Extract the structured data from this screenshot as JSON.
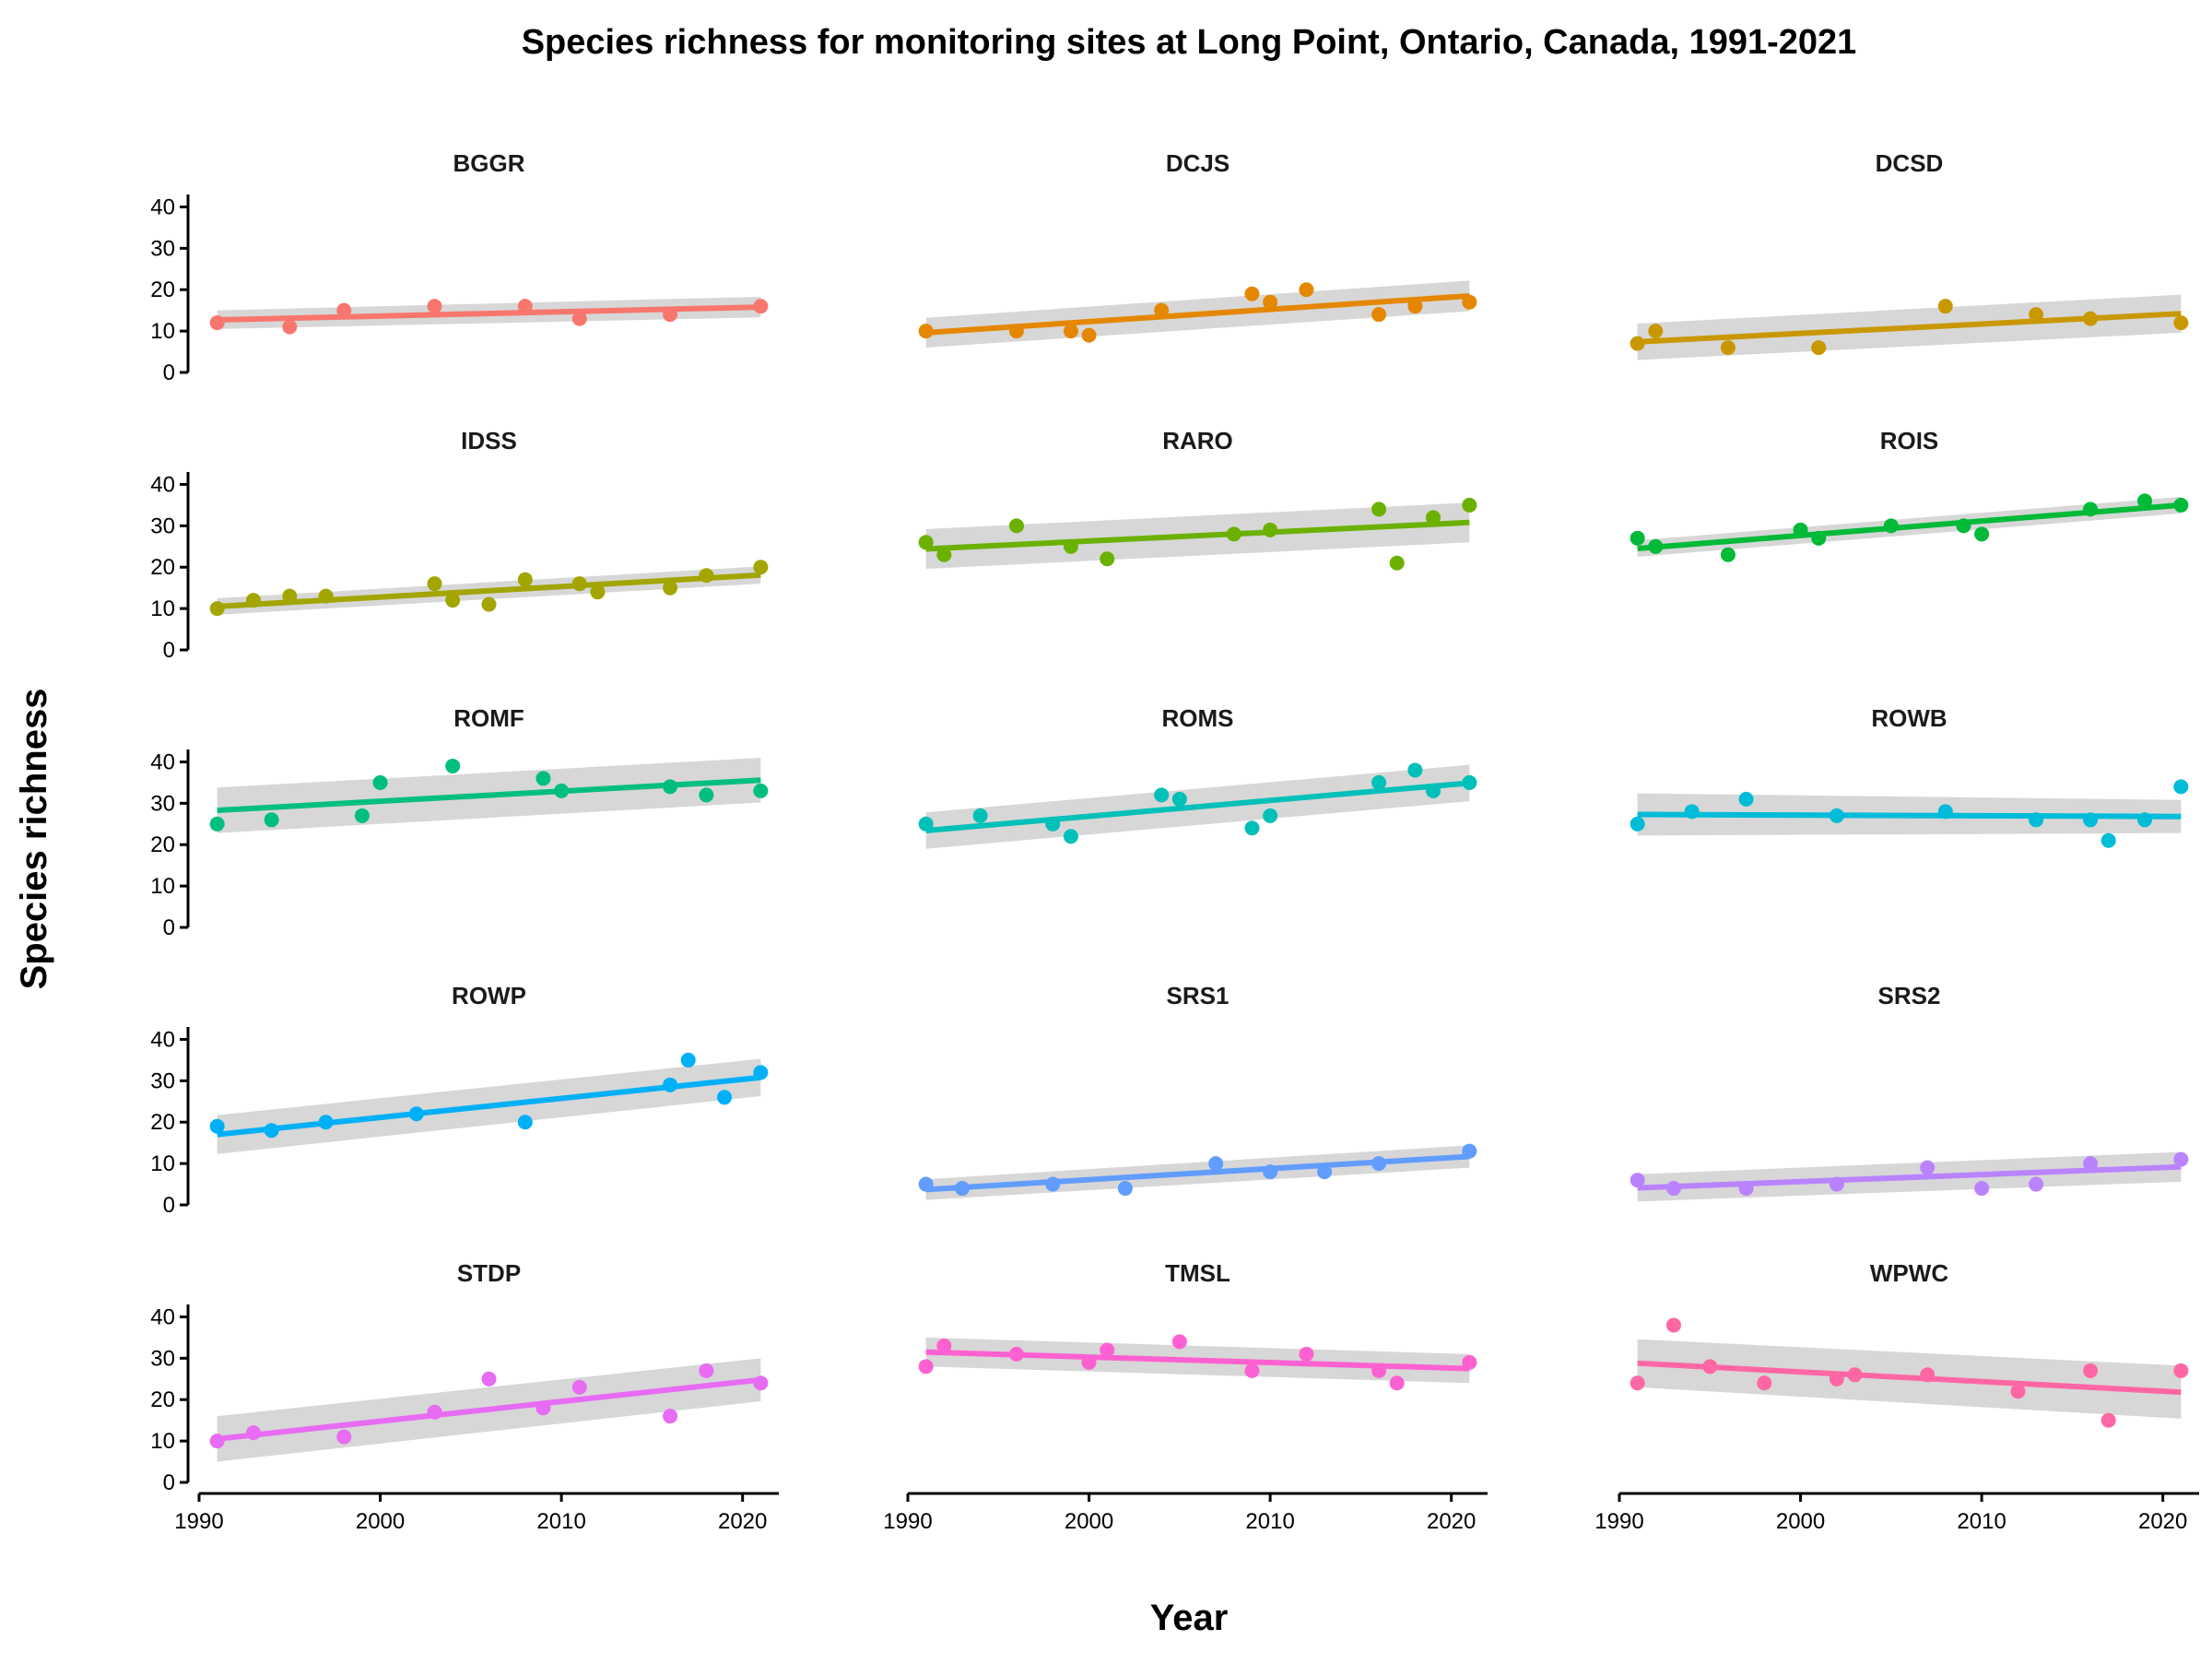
{
  "chart_data": {
    "type": "scatter",
    "title": "Species richness for monitoring sites at Long Point, Ontario, Canada, 1991-2021",
    "xlabel": "Year",
    "ylabel": "Species richness",
    "xlim": [
      1990,
      2022
    ],
    "ylim": [
      0,
      43
    ],
    "x_ticks": [
      "1990",
      "2000",
      "2010",
      "2020"
    ],
    "y_ticks": [
      "0",
      "10",
      "20",
      "30",
      "40"
    ],
    "grid": false,
    "trend": "linear fit with confidence band",
    "panels": [
      {
        "name": "BGGR",
        "color": "#F8766D",
        "x": [
          1991,
          1995,
          1998,
          2003,
          2008,
          2011,
          2016,
          2021
        ],
        "y": [
          12,
          11,
          15,
          16,
          16,
          13,
          14,
          16
        ],
        "fit": [
          12.7,
          15.8
        ],
        "band": [
          [
            10.5,
            15.0
          ],
          [
            13.3,
            18.3
          ]
        ]
      },
      {
        "name": "DCJS",
        "color": "#E58700",
        "x": [
          1991,
          1996,
          1999,
          2000,
          2004,
          2009,
          2010,
          2012,
          2016,
          2018,
          2021
        ],
        "y": [
          10,
          10,
          10,
          9,
          15,
          19,
          17,
          20,
          14,
          16,
          17
        ],
        "fit": [
          9.6,
          18.5
        ],
        "band": [
          [
            6.0,
            13.2
          ],
          [
            14.8,
            22.2
          ]
        ]
      },
      {
        "name": "DCSD",
        "color": "#C99800",
        "x": [
          1991,
          1992,
          1996,
          2001,
          2008,
          2013,
          2016,
          2021
        ],
        "y": [
          7,
          10,
          6,
          6,
          16,
          14,
          13,
          12
        ],
        "fit": [
          7.4,
          14.2
        ],
        "band": [
          [
            3.0,
            11.8
          ],
          [
            9.6,
            18.8
          ]
        ]
      },
      {
        "name": "IDSS",
        "color": "#A3A500",
        "x": [
          1991,
          1993,
          1995,
          1997,
          2003,
          2004,
          2006,
          2008,
          2011,
          2012,
          2016,
          2018,
          2021
        ],
        "y": [
          10,
          12,
          13,
          13,
          16,
          12,
          11,
          17,
          16,
          14,
          15,
          18,
          20
        ],
        "fit": [
          10.5,
          18.1
        ],
        "band": [
          [
            8.5,
            12.5
          ],
          [
            16.0,
            20.2
          ]
        ]
      },
      {
        "name": "RARO",
        "color": "#6BB100",
        "x": [
          1991,
          1992,
          1996,
          1999,
          2001,
          2008,
          2010,
          2016,
          2017,
          2019,
          2021
        ],
        "y": [
          26,
          23,
          30,
          25,
          22,
          28,
          29,
          34,
          21,
          32,
          35
        ],
        "fit": [
          24.4,
          30.8
        ],
        "band": [
          [
            19.6,
            29.2
          ],
          [
            26.0,
            35.6
          ]
        ]
      },
      {
        "name": "ROIS",
        "color": "#00BA38",
        "x": [
          1991,
          1992,
          1996,
          2000,
          2001,
          2005,
          2009,
          2010,
          2016,
          2019,
          2021
        ],
        "y": [
          27,
          25,
          23,
          29,
          27,
          30,
          30,
          28,
          34,
          36,
          35
        ],
        "fit": [
          24.5,
          35.0
        ],
        "band": [
          [
            22.5,
            26.5
          ],
          [
            33.0,
            37.0
          ]
        ]
      },
      {
        "name": "ROMF",
        "color": "#00BF7D",
        "x": [
          1991,
          1994,
          1999,
          2000,
          2004,
          2009,
          2010,
          2016,
          2018,
          2021
        ],
        "y": [
          25,
          26,
          27,
          35,
          39,
          36,
          33,
          34,
          32,
          33
        ],
        "fit": [
          28.3,
          35.6
        ],
        "band": [
          [
            22.8,
            33.8
          ],
          [
            30.2,
            41.0
          ]
        ]
      },
      {
        "name": "ROMS",
        "color": "#00C0B8",
        "x": [
          1991,
          1994,
          1998,
          1999,
          2004,
          2005,
          2009,
          2010,
          2016,
          2018,
          2019,
          2021
        ],
        "y": [
          25,
          27,
          25,
          22,
          32,
          31,
          24,
          27,
          35,
          38,
          33,
          35
        ],
        "fit": [
          23.4,
          34.9
        ],
        "band": [
          [
            19.0,
            27.8
          ],
          [
            30.5,
            39.3
          ]
        ]
      },
      {
        "name": "ROWB",
        "color": "#00BCD8",
        "x": [
          1991,
          1994,
          1997,
          2002,
          2008,
          2013,
          2016,
          2017,
          2019,
          2021
        ],
        "y": [
          25,
          28,
          31,
          27,
          28,
          26,
          26,
          21,
          26,
          34
        ],
        "fit": [
          27.3,
          26.8
        ],
        "band": [
          [
            22.2,
            32.4
          ],
          [
            22.8,
            30.8
          ]
        ]
      },
      {
        "name": "ROWP",
        "color": "#00B0F6",
        "x": [
          1991,
          1994,
          1997,
          2002,
          2008,
          2016,
          2017,
          2019,
          2021
        ],
        "y": [
          19,
          18,
          20,
          22,
          20,
          29,
          35,
          26,
          32
        ],
        "fit": [
          17.0,
          30.8
        ],
        "band": [
          [
            12.3,
            21.7
          ],
          [
            26.3,
            35.3
          ]
        ]
      },
      {
        "name": "SRS1",
        "color": "#619CFF",
        "x": [
          1991,
          1993,
          1998,
          2002,
          2007,
          2010,
          2013,
          2016,
          2021
        ],
        "y": [
          5,
          4,
          5,
          4,
          10,
          8,
          8,
          10,
          13
        ],
        "fit": [
          3.7,
          11.7
        ],
        "band": [
          [
            1.2,
            6.2
          ],
          [
            9.0,
            14.4
          ]
        ]
      },
      {
        "name": "SRS2",
        "color": "#B983FF",
        "x": [
          1991,
          1993,
          1997,
          2002,
          2007,
          2010,
          2013,
          2016,
          2021
        ],
        "y": [
          6,
          4,
          4,
          5,
          9,
          4,
          5,
          10,
          11
        ],
        "fit": [
          4.1,
          9.2
        ],
        "band": [
          [
            0.8,
            7.4
          ],
          [
            5.6,
            12.8
          ]
        ]
      },
      {
        "name": "STDP",
        "color": "#E76BF3",
        "x": [
          1991,
          1993,
          1998,
          2003,
          2006,
          2009,
          2011,
          2016,
          2018,
          2021
        ],
        "y": [
          10,
          12,
          11,
          17,
          25,
          18,
          23,
          16,
          27,
          24
        ],
        "fit": [
          10.5,
          24.8
        ],
        "band": [
          [
            5.0,
            16.0
          ],
          [
            19.6,
            30.0
          ]
        ]
      },
      {
        "name": "TMSL",
        "color": "#FD61D1",
        "x": [
          1991,
          1992,
          1996,
          2000,
          2001,
          2005,
          2009,
          2012,
          2016,
          2017,
          2021
        ],
        "y": [
          28,
          33,
          31,
          29,
          32,
          34,
          27,
          31,
          27,
          24,
          29
        ],
        "fit": [
          31.5,
          27.5
        ],
        "band": [
          [
            28.0,
            35.0
          ],
          [
            24.0,
            31.0
          ]
        ]
      },
      {
        "name": "WPWC",
        "color": "#FF67A4",
        "x": [
          1991,
          1993,
          1995,
          1998,
          2002,
          2003,
          2007,
          2012,
          2016,
          2017,
          2021
        ],
        "y": [
          24,
          38,
          28,
          24,
          25,
          26,
          26,
          22,
          27,
          15,
          27
        ],
        "fit": [
          28.8,
          21.8
        ],
        "band": [
          [
            23.0,
            34.6
          ],
          [
            15.4,
            28.2
          ]
        ]
      }
    ]
  }
}
